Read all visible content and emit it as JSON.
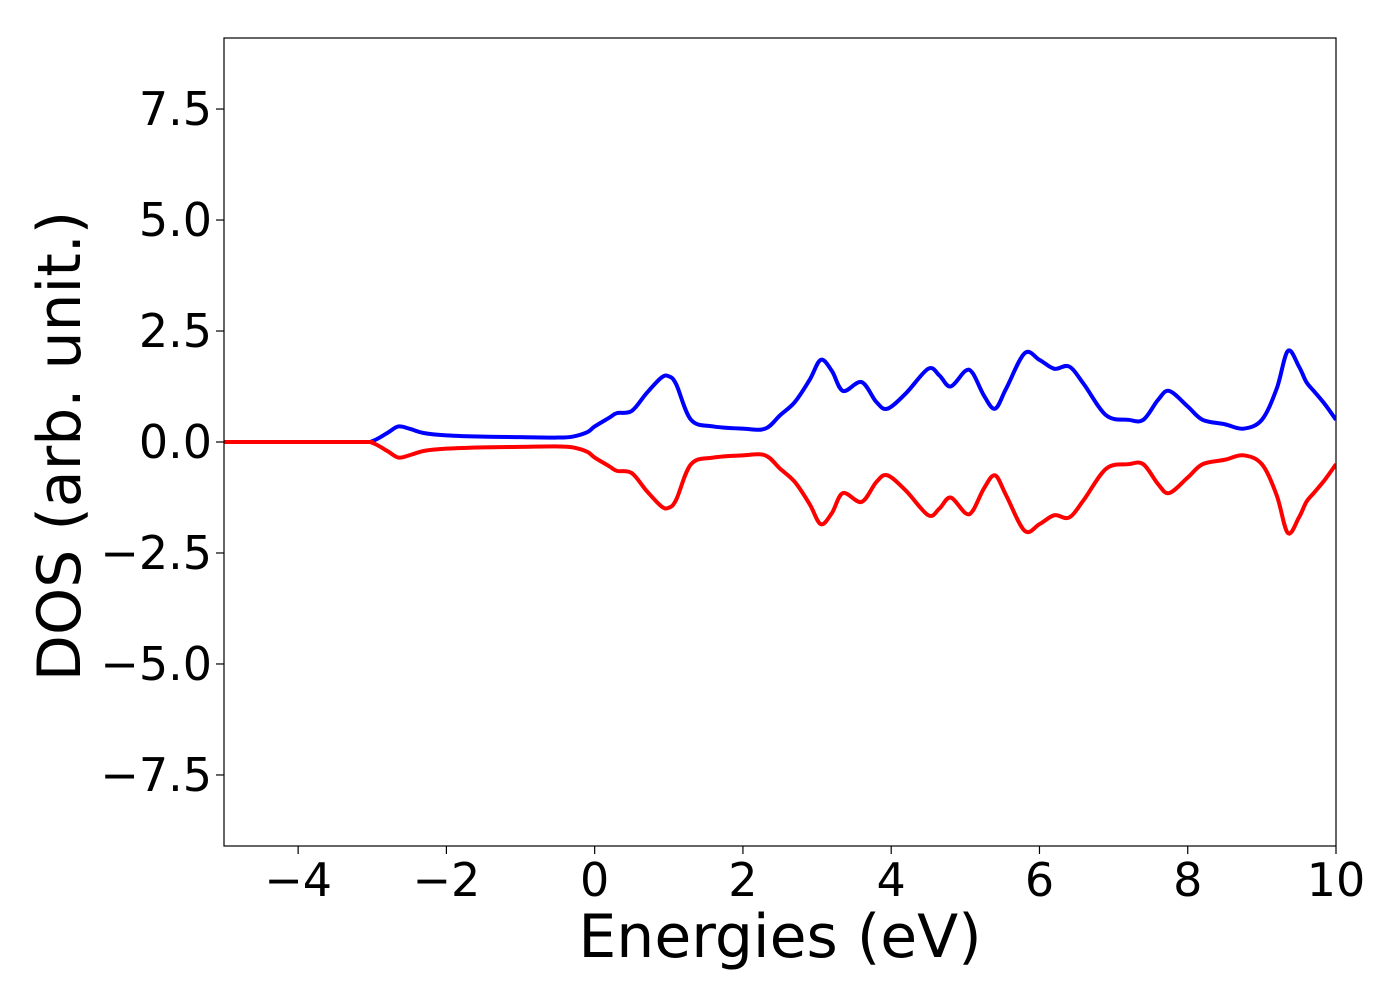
{
  "chart_data": {
    "type": "line",
    "title": "",
    "xlabel": "Energies (eV)",
    "ylabel": "DOS (arb. unit.)",
    "xlim": [
      -5,
      10
    ],
    "ylim": [
      -9.1,
      9.1
    ],
    "grid": false,
    "legend": "none",
    "xticks": [
      -4,
      -2,
      0,
      2,
      4,
      6,
      8,
      10
    ],
    "xtick_labels": [
      "−4",
      "−2",
      "0",
      "2",
      "4",
      "6",
      "8",
      "10"
    ],
    "yticks": [
      7.5,
      5.0,
      2.5,
      0.0,
      -2.5,
      -5.0,
      -7.5
    ],
    "ytick_labels": [
      "7.5",
      "5.0",
      "2.5",
      "0.0",
      "−2.5",
      "−5.0",
      "−7.5"
    ],
    "series": [
      {
        "color": "#0000ff",
        "x": [
          -5.0,
          -3.2,
          -3.0,
          -2.8,
          -2.65,
          -2.5,
          -2.3,
          -2.0,
          -1.5,
          -1.0,
          -0.5,
          -0.3,
          -0.1,
          0.0,
          0.2,
          0.3,
          0.5,
          0.7,
          0.9,
          1.0,
          1.1,
          1.3,
          1.6,
          2.0,
          2.3,
          2.5,
          2.7,
          2.9,
          3.05,
          3.2,
          3.35,
          3.6,
          3.8,
          3.95,
          4.2,
          4.5,
          4.65,
          4.8,
          5.0,
          5.1,
          5.25,
          5.4,
          5.55,
          5.8,
          6.0,
          6.2,
          6.4,
          6.6,
          6.9,
          7.2,
          7.4,
          7.6,
          7.75,
          8.0,
          8.2,
          8.5,
          8.75,
          9.0,
          9.2,
          9.35,
          9.5,
          9.6,
          9.7,
          9.85,
          10.0
        ],
        "y": [
          0.0,
          0.0,
          0.02,
          0.2,
          0.35,
          0.3,
          0.2,
          0.15,
          0.12,
          0.11,
          0.1,
          0.12,
          0.22,
          0.35,
          0.55,
          0.65,
          0.7,
          1.1,
          1.45,
          1.48,
          1.3,
          0.5,
          0.35,
          0.3,
          0.3,
          0.6,
          0.9,
          1.4,
          1.85,
          1.6,
          1.15,
          1.35,
          0.9,
          0.75,
          1.1,
          1.65,
          1.5,
          1.25,
          1.6,
          1.55,
          1.05,
          0.75,
          1.2,
          2.0,
          1.85,
          1.65,
          1.7,
          1.3,
          0.6,
          0.5,
          0.5,
          0.95,
          1.15,
          0.8,
          0.5,
          0.4,
          0.3,
          0.5,
          1.2,
          2.05,
          1.7,
          1.35,
          1.15,
          0.85,
          0.5
        ]
      },
      {
        "color": "#ff0000",
        "x": [
          -5.0,
          -3.2,
          -3.0,
          -2.8,
          -2.65,
          -2.5,
          -2.3,
          -2.0,
          -1.5,
          -1.0,
          -0.5,
          -0.3,
          -0.1,
          0.0,
          0.2,
          0.3,
          0.5,
          0.7,
          0.9,
          1.0,
          1.1,
          1.3,
          1.6,
          2.0,
          2.3,
          2.5,
          2.7,
          2.9,
          3.05,
          3.2,
          3.35,
          3.6,
          3.8,
          3.95,
          4.2,
          4.5,
          4.65,
          4.8,
          5.0,
          5.1,
          5.25,
          5.4,
          5.55,
          5.8,
          6.0,
          6.2,
          6.4,
          6.6,
          6.9,
          7.2,
          7.4,
          7.6,
          7.75,
          8.0,
          8.2,
          8.5,
          8.75,
          9.0,
          9.2,
          9.35,
          9.5,
          9.6,
          9.7,
          9.85,
          10.0
        ],
        "y": [
          0.0,
          0.0,
          -0.02,
          -0.2,
          -0.35,
          -0.3,
          -0.2,
          -0.15,
          -0.12,
          -0.11,
          -0.1,
          -0.12,
          -0.22,
          -0.35,
          -0.55,
          -0.65,
          -0.7,
          -1.1,
          -1.45,
          -1.48,
          -1.3,
          -0.5,
          -0.35,
          -0.3,
          -0.3,
          -0.6,
          -0.9,
          -1.4,
          -1.85,
          -1.6,
          -1.15,
          -1.35,
          -0.9,
          -0.75,
          -1.1,
          -1.65,
          -1.5,
          -1.25,
          -1.6,
          -1.55,
          -1.05,
          -0.75,
          -1.2,
          -2.0,
          -1.85,
          -1.65,
          -1.7,
          -1.3,
          -0.6,
          -0.5,
          -0.5,
          -0.95,
          -1.15,
          -0.8,
          -0.5,
          -0.4,
          -0.3,
          -0.5,
          -1.2,
          -2.05,
          -1.7,
          -1.35,
          -1.15,
          -0.85,
          -0.5
        ]
      }
    ]
  }
}
